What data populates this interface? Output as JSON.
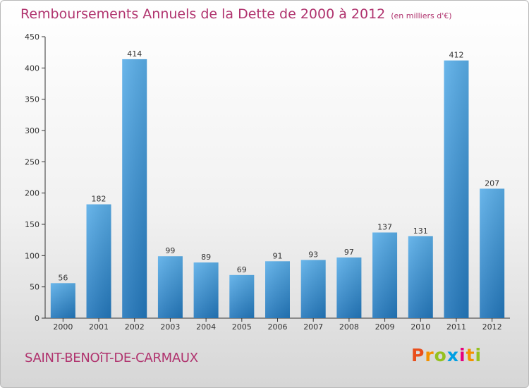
{
  "header": {
    "title": "Remboursements Annuels de la Dette de 2000 à 2012",
    "unit": "(en milliers d'€)"
  },
  "footer": {
    "commune": "SAINT-BENOîT-DE-CARMAUX",
    "brand_letters": [
      "P",
      "r",
      "o",
      "x",
      "i",
      "t",
      "i"
    ],
    "brand_colors": [
      "#e94e1b",
      "#f39200",
      "#95c11f",
      "#009fe3",
      "#e6007e",
      "#f39200",
      "#95c11f"
    ]
  },
  "chart_data": {
    "type": "bar",
    "title": "Remboursements Annuels de la Dette de 2000 à 2012",
    "unit": "(en milliers d'€)",
    "categories": [
      "2000",
      "2001",
      "2002",
      "2003",
      "2004",
      "2005",
      "2006",
      "2007",
      "2008",
      "2009",
      "2010",
      "2011",
      "2012"
    ],
    "values": [
      56,
      182,
      414,
      99,
      89,
      69,
      91,
      93,
      97,
      137,
      131,
      412,
      207
    ],
    "ylim": [
      0,
      450
    ],
    "yticks": [
      0,
      50,
      100,
      150,
      200,
      250,
      300,
      350,
      400,
      450
    ],
    "grid": false,
    "data_labels": true,
    "bar_color": "#3c96d6",
    "label_color": "#b0336e"
  }
}
